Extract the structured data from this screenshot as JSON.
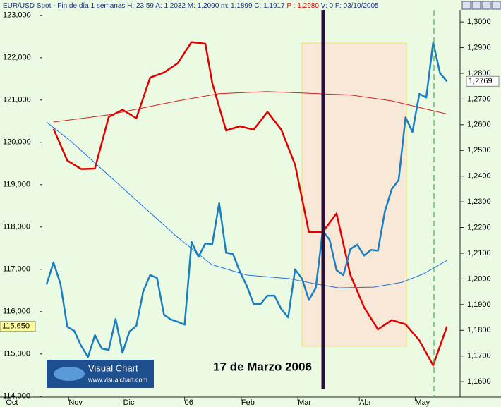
{
  "chart_data": {
    "type": "line",
    "title": "EUR/USD Spot - Fin de día 1 semanas H: 23:59 A: 1,2032 M: 1,2090 m: 1,1899 C: 1,1917",
    "title_highlight": "P : 1,2980",
    "title_suffix": "V: 0 F: 03/10/2005",
    "annotation": "17 de Marzo 2006",
    "logo": {
      "title": "Visual Chart",
      "url": "www.visualchart.com"
    },
    "xlim": [
      -6.75,
      59.9
    ],
    "xticks": [
      {
        "value": -5.9,
        "label": "Oct"
      },
      {
        "value": 3.2,
        "label": "Nov"
      },
      {
        "value": 11.1,
        "label": "Dic"
      },
      {
        "value": 20.0,
        "label": "06"
      },
      {
        "value": 28.2,
        "label": "Feb"
      },
      {
        "value": 36.4,
        "label": "Mar"
      },
      {
        "value": 45.3,
        "label": "Abr"
      },
      {
        "value": 53.4,
        "label": "May"
      }
    ],
    "ylim": [
      113980,
      123130
    ],
    "yticks": [
      {
        "value": 114000,
        "label": "114,000"
      },
      {
        "value": 115000,
        "label": "115,000"
      },
      {
        "value": 116000,
        "label": "116,000"
      },
      {
        "value": 117000,
        "label": "117,000"
      },
      {
        "value": 118000,
        "label": "118,000"
      },
      {
        "value": 119000,
        "label": "119,000"
      },
      {
        "value": 120000,
        "label": "120,000"
      },
      {
        "value": 121000,
        "label": "121,000"
      },
      {
        "value": 122000,
        "label": "122,000"
      },
      {
        "value": 123000,
        "label": "123,000"
      }
    ],
    "y2lim": [
      1.154,
      1.3047
    ],
    "y2ticks": [
      {
        "value": 1.16,
        "label": "1,1600"
      },
      {
        "value": 1.17,
        "label": "1,1700"
      },
      {
        "value": 1.18,
        "label": "1,1800"
      },
      {
        "value": 1.19,
        "label": "1,1900"
      },
      {
        "value": 1.2,
        "label": "1,2000"
      },
      {
        "value": 1.21,
        "label": "1,2100"
      },
      {
        "value": 1.22,
        "label": "1,2200"
      },
      {
        "value": 1.23,
        "label": "1,2300"
      },
      {
        "value": 1.24,
        "label": "1,2400"
      },
      {
        "value": 1.25,
        "label": "1,2500"
      },
      {
        "value": 1.26,
        "label": "1,2600"
      },
      {
        "value": 1.27,
        "label": "1,2700"
      },
      {
        "value": 1.28,
        "label": "1,2800"
      },
      {
        "value": 1.29,
        "label": "1,2900"
      },
      {
        "value": 1.3,
        "label": "1,3000"
      }
    ],
    "series": [
      {
        "color": "#e00000",
        "axis": "y",
        "line_width": 2.5,
        "x": [
          1,
          3,
          5,
          7,
          9,
          11,
          13,
          15,
          17,
          19,
          21,
          23,
          24,
          26,
          28,
          30,
          32,
          34,
          36,
          38,
          40,
          42,
          44,
          46,
          48,
          50,
          52,
          54,
          56,
          58
        ],
        "values": [
          120320,
          119570,
          119370,
          119380,
          120600,
          120770,
          120570,
          121530,
          121650,
          121870,
          122370,
          122330,
          121400,
          120280,
          120380,
          120300,
          120720,
          120300,
          119470,
          117880,
          117880,
          118320,
          116870,
          116100,
          115580,
          115800,
          115700,
          115320,
          114730,
          115650
        ]
      },
      {
        "color": "#d82020",
        "axis": "y",
        "line_width": 1,
        "x": [
          1,
          9,
          19,
          25,
          32,
          44,
          50,
          58
        ],
        "values": [
          120480,
          120650,
          120980,
          121150,
          121200,
          121120,
          120980,
          120670
        ]
      },
      {
        "color": "#1a7ec0",
        "axis": "y2",
        "line_width": 2.5,
        "x": [
          0,
          1,
          2,
          3,
          4,
          5,
          6,
          7,
          8,
          9,
          10,
          11,
          12,
          13,
          14,
          15,
          16,
          17,
          18,
          19,
          20,
          21,
          22,
          23,
          24,
          25,
          26,
          27,
          28,
          29,
          30,
          31,
          32,
          33,
          34,
          35,
          36,
          37,
          38,
          39,
          40,
          41,
          42,
          43,
          44,
          45,
          46,
          47,
          48,
          49,
          50,
          51,
          52,
          53,
          54,
          55,
          56,
          57,
          58
        ],
        "values": [
          1.1979,
          1.2064,
          1.1982,
          1.1814,
          1.1798,
          1.174,
          1.1696,
          1.1781,
          1.1729,
          1.1724,
          1.1844,
          1.1713,
          1.1795,
          1.1817,
          1.1951,
          1.2015,
          1.2004,
          1.1861,
          1.1842,
          1.1833,
          1.1822,
          1.2144,
          1.2086,
          1.2138,
          1.2135,
          1.2295,
          1.2102,
          1.2097,
          1.2028,
          1.1973,
          1.1902,
          1.1902,
          1.1935,
          1.1935,
          1.1883,
          1.185,
          1.2037,
          1.2001,
          1.1918,
          1.1965,
          1.2187,
          1.2152,
          1.2034,
          1.2015,
          1.2116,
          1.2133,
          1.2091,
          1.2113,
          1.211,
          1.2262,
          1.2349,
          1.2385,
          1.2629,
          1.2572,
          1.272,
          1.2706,
          1.292,
          1.28,
          1.2769
        ]
      },
      {
        "color": "#2070e0",
        "axis": "y2",
        "line_width": 1,
        "x": [
          0,
          3.5,
          8.6,
          13.7,
          18.8,
          23.9,
          29,
          35.2,
          39.3,
          42.3,
          47.4,
          51.5,
          54.6,
          58
        ],
        "values": [
          1.261,
          1.2536,
          1.2413,
          1.2289,
          1.2166,
          1.2056,
          1.2015,
          1.2001,
          1.1979,
          1.1965,
          1.1968,
          1.1987,
          1.202,
          1.2072
        ]
      }
    ],
    "marker_labels": [
      {
        "axis": "y",
        "value": 115650,
        "label": "115,650"
      },
      {
        "axis": "y2",
        "value": 1.2769,
        "label": "1,2769"
      }
    ]
  }
}
